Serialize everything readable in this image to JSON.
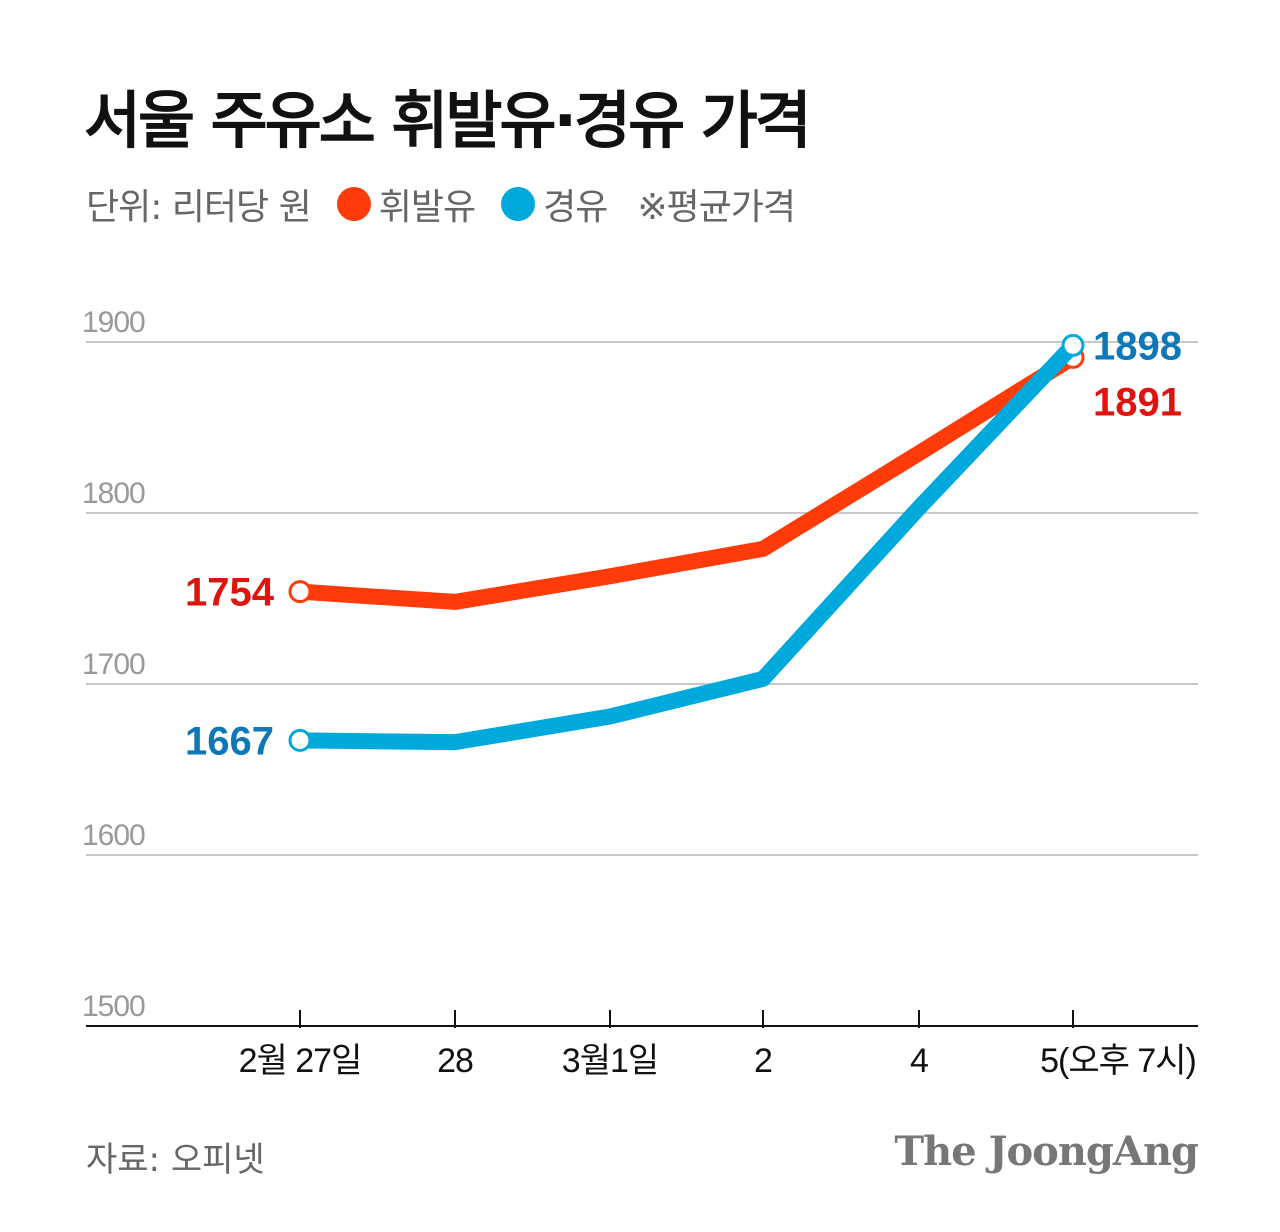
{
  "title": "서울 주유소 휘발유·경유 가격",
  "legend": {
    "unit": "단위: 리터당 원",
    "gasoline": "휘발유",
    "diesel": "경유",
    "note": "※평균가격"
  },
  "source": "자료: 오피넷",
  "logo": "The JoongAng",
  "chart_data": {
    "type": "line",
    "title": "서울 주유소 휘발유·경유 가격",
    "categories": [
      "2월 27일",
      "28",
      "3월1일",
      "2",
      "4",
      "5(오후 7시)"
    ],
    "series": [
      {
        "name": "휘발유",
        "color": "#ff3b0a",
        "label_color": "#e0140f",
        "values": [
          1754,
          1748,
          1763,
          1779,
          1835,
          1891
        ],
        "labels": [
          "1754",
          "",
          "",
          "",
          "",
          "1891"
        ]
      },
      {
        "name": "경유",
        "color": "#00a9db",
        "label_color": "#0d77b8",
        "values": [
          1667,
          1666,
          1681,
          1703,
          1803,
          1898
        ],
        "labels": [
          "1667",
          "",
          "",
          "",
          "",
          "1898"
        ]
      }
    ],
    "ylim": [
      1500,
      1900
    ],
    "yticks": [
      "1500",
      "1600",
      "1700",
      "1800",
      "1900"
    ],
    "grid": true
  }
}
